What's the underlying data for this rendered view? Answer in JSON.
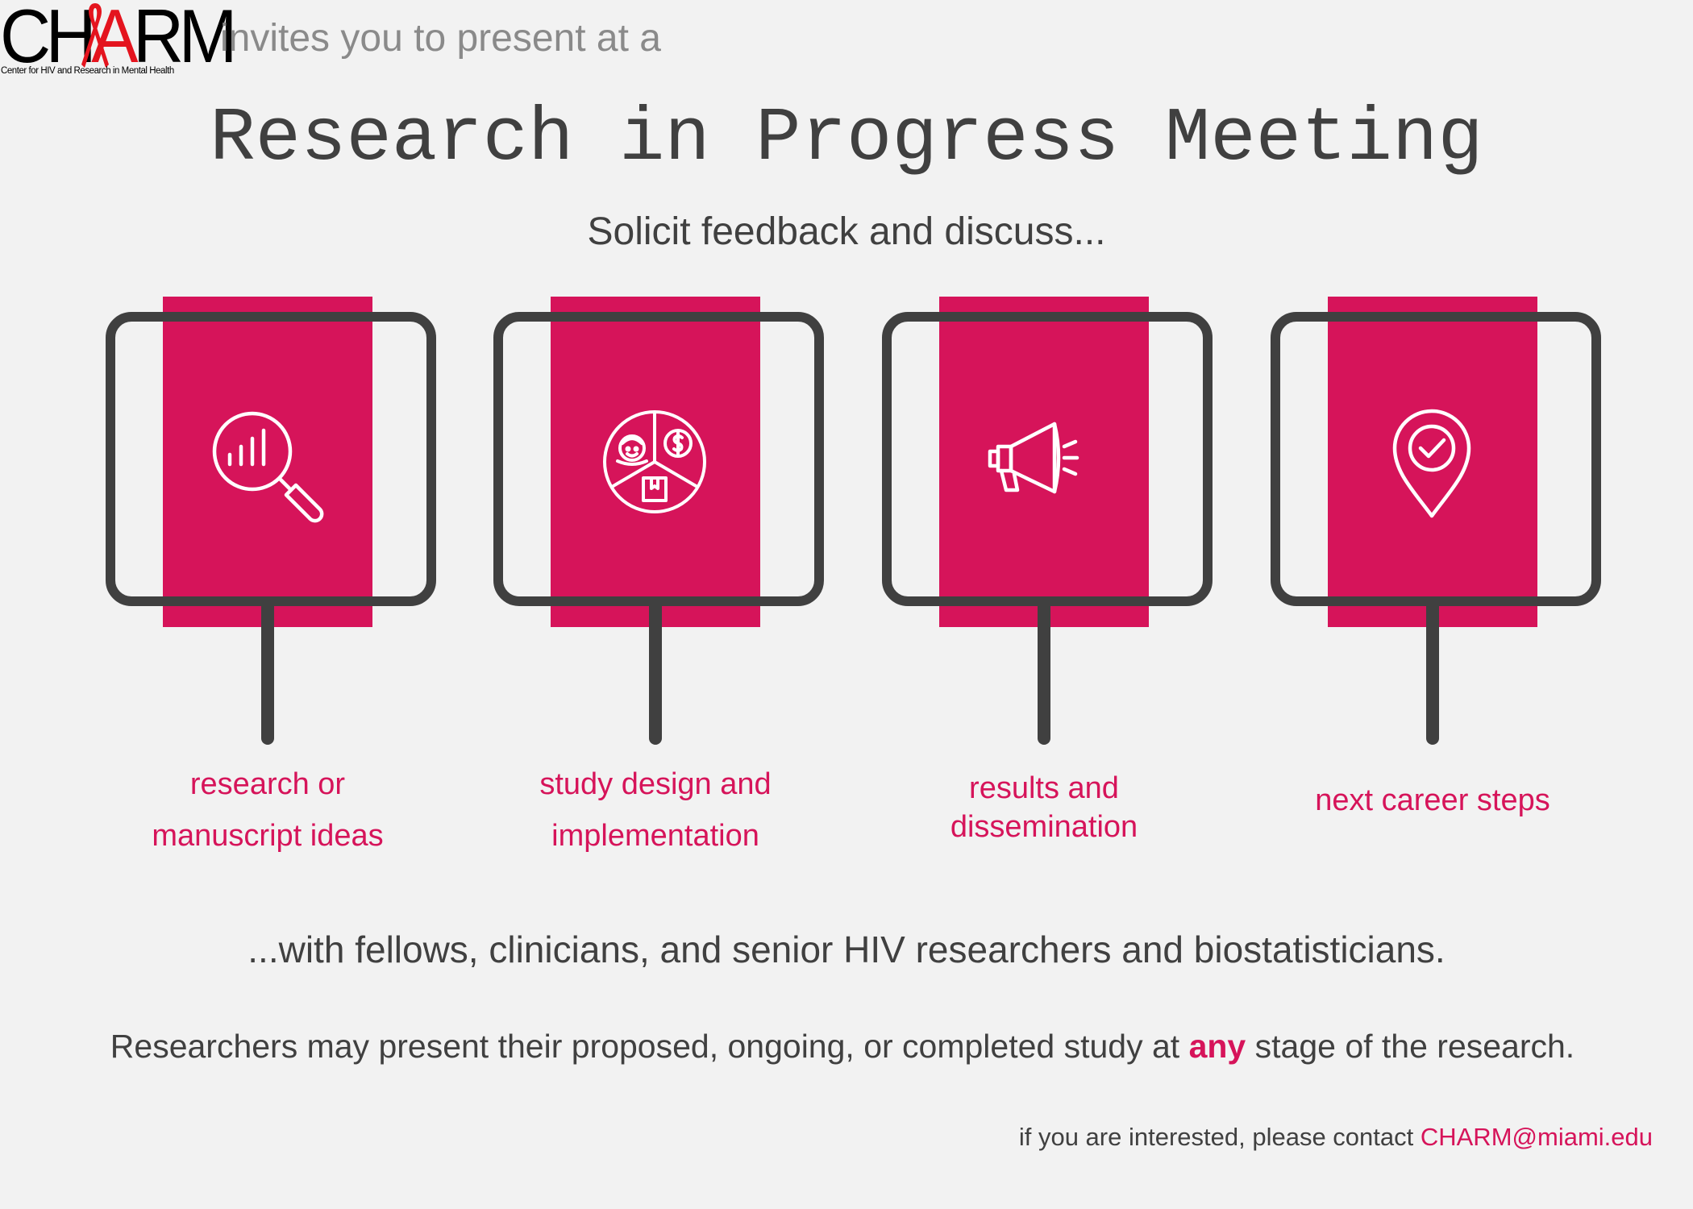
{
  "header": {
    "logo_text": "CHARM",
    "logo_subtitle": "Center for HIV and Research in Mental Health",
    "invite_text": "invites you to present at a"
  },
  "title": "Research in Progress Meeting",
  "subtitle": "Solicit feedback and discuss...",
  "topics": [
    {
      "icon": "magnifier-chart-icon",
      "line1": "research or",
      "line2": "manuscript ideas"
    },
    {
      "icon": "study-design-pie-icon",
      "line1": "study design and",
      "line2": "implementation"
    },
    {
      "icon": "megaphone-icon",
      "line1": "results and",
      "line2": "dissemination"
    },
    {
      "icon": "location-pin-check-icon",
      "line1": "next career steps",
      "line2": ""
    }
  ],
  "with_line": "...with fellows, clinicians, and senior HIV researchers and biostatisticians.",
  "stage_line": {
    "before": "Researchers may present their proposed, ongoing, or completed study at ",
    "highlight": "any",
    "after": " stage of the research."
  },
  "contact": {
    "text": "if you are interested, please contact ",
    "email": "CHARM@miami.edu"
  },
  "colors": {
    "accent": "#d6145a",
    "frame": "#404040",
    "background": "#f2f2f2",
    "logo_red": "#e4141e"
  }
}
